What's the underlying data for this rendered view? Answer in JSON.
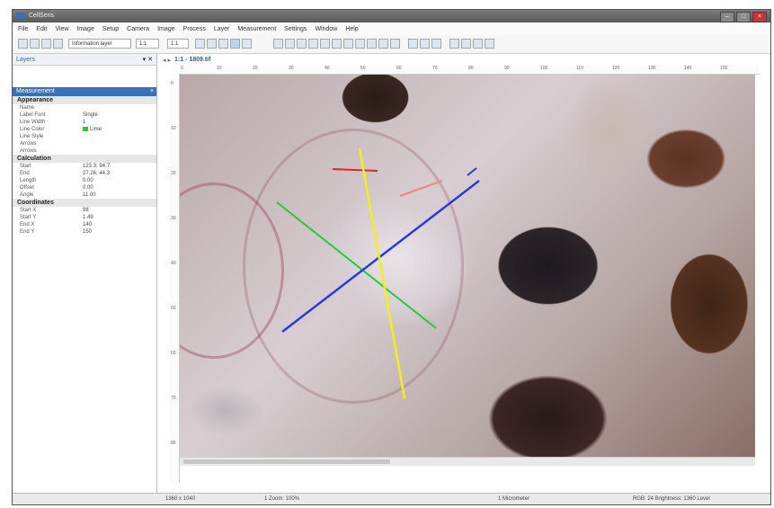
{
  "window": {
    "title": "CellSens"
  },
  "menu": [
    "File",
    "Edit",
    "View",
    "Image",
    "Setup",
    "Camera",
    "Image",
    "Process",
    "Layer",
    "Measurement",
    "Settings",
    "Window",
    "Help"
  ],
  "toolbar": {
    "zoom_select": "1:1",
    "mode_select": "Information layer",
    "scale_select": "1:1"
  },
  "sidebar": {
    "header": "Layers",
    "panel_title": "Measurement",
    "categories": [
      {
        "name": "Appearance",
        "rows": [
          {
            "key": "Name",
            "value": ""
          },
          {
            "key": "Label Font",
            "value": "Single"
          },
          {
            "key": "Line Width",
            "value": "1"
          },
          {
            "key": "Line Color",
            "value": "Lime"
          },
          {
            "key": "Line Style",
            "value": ""
          },
          {
            "key": "Arrows",
            "value": ""
          },
          {
            "key": "Arrows",
            "value": ""
          }
        ]
      },
      {
        "name": "Calculation",
        "rows": [
          {
            "key": "Start",
            "value": "123.3; 94.7"
          },
          {
            "key": "End",
            "value": "27.26; 44.3"
          },
          {
            "key": "Length",
            "value": "0.00"
          },
          {
            "key": "Offset",
            "value": "0.00"
          },
          {
            "key": "Angle",
            "value": "11.00"
          }
        ]
      },
      {
        "name": "Coordinates",
        "rows": [
          {
            "key": "Start X",
            "value": "98"
          },
          {
            "key": "Start Y",
            "value": "1.49"
          },
          {
            "key": "End X",
            "value": "140"
          },
          {
            "key": "End Y",
            "value": "150"
          }
        ]
      }
    ],
    "line_color_hex": "#22cc33"
  },
  "document": {
    "tab_label": "1:1 - 1809.tif",
    "ruler_top": [
      "0",
      "10",
      "20",
      "30",
      "40",
      "50",
      "60",
      "70",
      "80",
      "90",
      "100",
      "110",
      "120",
      "130",
      "140",
      "150"
    ],
    "ruler_left": [
      "0",
      "10",
      "20",
      "30",
      "40",
      "50",
      "60",
      "70",
      "80"
    ],
    "lines": [
      {
        "color": "#f3ef1a",
        "name": "yellow"
      },
      {
        "color": "#2a3ae0",
        "name": "blue"
      },
      {
        "color": "#22cc33",
        "name": "green"
      },
      {
        "color": "#e02626",
        "name": "red"
      }
    ]
  },
  "status": {
    "left": "1360 x 1040",
    "zoom": "1 Zoom: 100%",
    "unit": "1 Micrometer",
    "info": "RGB: 24 Brightness: 1360 Level"
  }
}
